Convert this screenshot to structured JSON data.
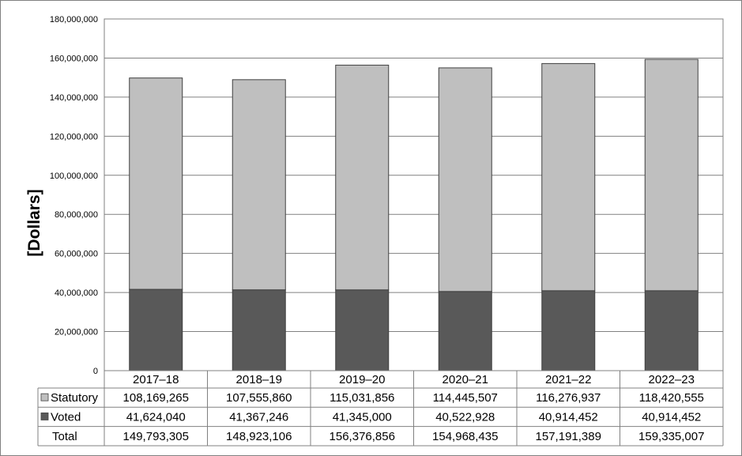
{
  "chart_data": {
    "type": "bar",
    "stacked": true,
    "categories": [
      "2017–18",
      "2018–19",
      "2019–20",
      "2020–21",
      "2021–22",
      "2022–23"
    ],
    "ylabel": "[Dollars]",
    "ylim": [
      0,
      180000000
    ],
    "yticks": [
      0,
      20000000,
      40000000,
      60000000,
      80000000,
      100000000,
      120000000,
      140000000,
      160000000,
      180000000
    ],
    "ytick_labels": [
      "0",
      "20,000,000",
      "40,000,000",
      "60,000,000",
      "80,000,000",
      "100,000,000",
      "120,000,000",
      "140,000,000",
      "160,000,000",
      "180,000,000"
    ],
    "grid": true,
    "series": [
      {
        "name": "Voted",
        "color": "#595959",
        "values": [
          41624040,
          41367246,
          41345000,
          40522928,
          40914452,
          40914452
        ],
        "labels": [
          "41,624,040",
          "41,367,246",
          "41,345,000",
          "40,522,928",
          "40,914,452",
          "40,914,452"
        ]
      },
      {
        "name": "Statutory",
        "color": "#bfbfbf",
        "values": [
          108169265,
          107555860,
          115031856,
          114445507,
          116276937,
          118420555
        ],
        "labels": [
          "108,169,265",
          "107,555,860",
          "115,031,856",
          "114,445,507",
          "116,276,937",
          "118,420,555"
        ]
      }
    ],
    "data_table": {
      "row_order": [
        "Statutory",
        "Voted",
        "Total"
      ],
      "total_label": "Total",
      "totals": [
        "149,793,305",
        "148,923,106",
        "156,376,856",
        "154,968,435",
        "157,191,389",
        "159,335,007"
      ]
    }
  }
}
